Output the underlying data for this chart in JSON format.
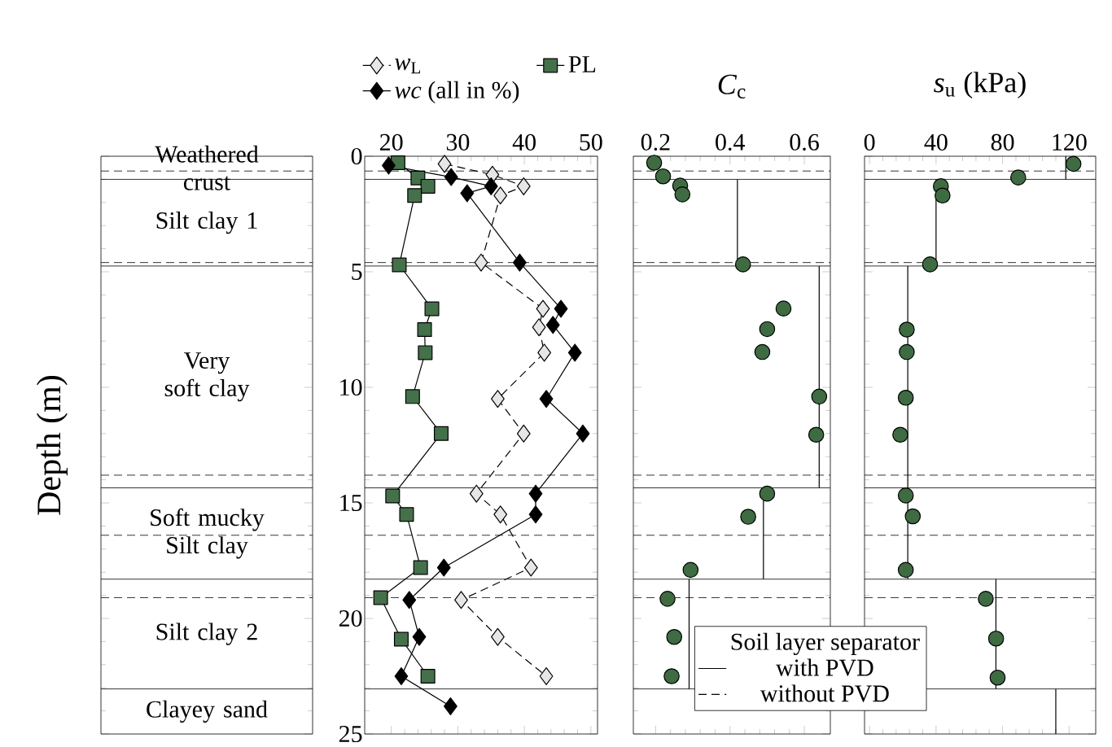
{
  "chart_data": [
    {
      "type": "line",
      "ylabel": "Depth (m)",
      "xlim": [
        16,
        51
      ],
      "xticks": [
        20,
        30,
        40,
        50
      ],
      "ylim": [
        25,
        0
      ],
      "yticks": [
        0,
        5,
        10,
        15,
        20,
        25
      ],
      "legend": "top",
      "annotations": [
        "Weathered crust",
        "Silt clay 1",
        "Very soft clay",
        "Soft mucky Silt clay",
        "Silt clay 2",
        "Clayey sand"
      ],
      "series": [
        {
          "name": "*w*$_{L}$",
          "color": "#e6e6e6",
          "marker": "diamond",
          "line_style": "dashed",
          "x": [
            28,
            35.2,
            39.9,
            36.4,
            33.5,
            42.8,
            42.2,
            43,
            36,
            39.9,
            32.8,
            36.4,
            41,
            30.5,
            36,
            43.3
          ],
          "values": [
            0.33,
            0.8,
            1.3,
            1.7,
            4.6,
            6.6,
            7.4,
            8.5,
            10.5,
            12.0,
            14.6,
            15.5,
            17.8,
            19.2,
            20.8,
            22.5
          ]
        },
        {
          "name": "PL",
          "color": "#44704a",
          "marker": "square",
          "line_style": "solid",
          "x": [
            21,
            24,
            25.5,
            23.5,
            21.2,
            26.1,
            25,
            25.1,
            23.2,
            27.5,
            20.2,
            22.3,
            24.4,
            18.4,
            21.5,
            25.5
          ],
          "values": [
            0.28,
            0.94,
            1.3,
            1.7,
            4.7,
            6.6,
            7.5,
            8.5,
            10.4,
            12.0,
            14.7,
            15.5,
            17.8,
            19.1,
            20.9,
            22.5
          ]
        },
        {
          "name": "*wc* (all in %)",
          "color": "#000000",
          "marker": "diamond",
          "line_style": "solid",
          "x": [
            19.6,
            29,
            35,
            31.4,
            39.3,
            45.5,
            44.3,
            47.6,
            43.3,
            48.8,
            41.7,
            41.7,
            27.9,
            22.7,
            24.2,
            21.5,
            28.9
          ],
          "values": [
            0.4,
            0.9,
            1.3,
            1.6,
            4.6,
            6.6,
            7.3,
            8.5,
            10.5,
            12.0,
            14.6,
            15.5,
            17.8,
            19.2,
            20.8,
            22.5,
            23.8
          ]
        }
      ],
      "ref_lines": [
        {
          "axis": "y",
          "value": 1.0,
          "line_style": "solid"
        },
        {
          "axis": "y",
          "value": 4.75,
          "line_style": "solid"
        },
        {
          "axis": "y",
          "value": 14.35,
          "line_style": "solid"
        },
        {
          "axis": "y",
          "value": 18.3,
          "line_style": "solid"
        },
        {
          "axis": "y",
          "value": 23.05,
          "line_style": "solid"
        },
        {
          "axis": "y",
          "value": 0.64,
          "line_style": "dashed"
        },
        {
          "axis": "y",
          "value": 4.6,
          "line_style": "dashed"
        },
        {
          "axis": "y",
          "value": 13.8,
          "line_style": "dashed"
        },
        {
          "axis": "y",
          "value": 16.4,
          "line_style": "dashed"
        },
        {
          "axis": "y",
          "value": 19.1,
          "line_style": "dashed"
        }
      ]
    },
    {
      "type": "scatter",
      "xlabel": "*C*$_{c}$",
      "xlim": [
        0.14,
        0.67
      ],
      "xticks": [
        0.2,
        0.4,
        0.6
      ],
      "ylim": [
        25,
        0
      ],
      "yticks": [
        0,
        5,
        10,
        15,
        20,
        25
      ],
      "tick_labels": "x",
      "legend": "bottom right",
      "legend_title": "Soil layer separator",
      "series": [
        {
          "color": "#3f6b42",
          "marker": "circle",
          "x": [
            0.196,
            0.22,
            0.266,
            0.272,
            0.435,
            0.544,
            0.5,
            0.487,
            0.64,
            0.632,
            0.5,
            0.449,
            0.294,
            0.232,
            0.25,
            0.243
          ],
          "values": [
            0.28,
            0.87,
            1.27,
            1.65,
            4.68,
            6.59,
            7.48,
            8.47,
            10.4,
            12.05,
            14.6,
            15.6,
            17.9,
            19.15,
            20.8,
            22.5
          ]
        },
        {
          "type": "line",
          "color": "#000000",
          "marker": "none",
          "x": [
            0.42,
            0.42
          ],
          "values": [
            1.0,
            4.7
          ]
        },
        {
          "type": "line",
          "color": "#000000",
          "marker": "none",
          "x": [
            0.64,
            0.64
          ],
          "values": [
            4.75,
            14.35
          ]
        },
        {
          "type": "line",
          "color": "#000000",
          "marker": "none",
          "x": [
            0.49,
            0.49
          ],
          "values": [
            14.35,
            18.3
          ]
        },
        {
          "type": "line",
          "color": "#000000",
          "marker": "none",
          "x": [
            0.29,
            0.29
          ],
          "values": [
            18.3,
            23.05
          ]
        }
      ],
      "ref_lines": [
        {
          "axis": "y",
          "value": 1.0,
          "line_style": "solid",
          "label": "with PVD"
        },
        {
          "axis": "y",
          "value": 4.75,
          "line_style": "solid"
        },
        {
          "axis": "y",
          "value": 14.35,
          "line_style": "solid"
        },
        {
          "axis": "y",
          "value": 18.3,
          "line_style": "solid"
        },
        {
          "axis": "y",
          "value": 23.05,
          "line_style": "solid"
        },
        {
          "axis": "y",
          "value": 0.64,
          "line_style": "dashed",
          "label": "without PVD"
        },
        {
          "axis": "y",
          "value": 4.6,
          "line_style": "dashed"
        },
        {
          "axis": "y",
          "value": 13.8,
          "line_style": "dashed"
        },
        {
          "axis": "y",
          "value": 16.4,
          "line_style": "dashed"
        },
        {
          "axis": "y",
          "value": 19.1,
          "line_style": "dashed"
        }
      ]
    },
    {
      "type": "scatter",
      "xlabel": "*s*$_{u}$ (kPa)",
      "xlim": [
        -3,
        136
      ],
      "xticks": [
        0,
        40,
        80,
        120
      ],
      "ylim": [
        25,
        0
      ],
      "yticks": [
        0,
        5,
        10,
        15,
        20,
        25
      ],
      "tick_labels": "x",
      "series": [
        {
          "color": "#3f6b42",
          "marker": "circle",
          "x": [
            122.6,
            89.4,
            42.9,
            43.9,
            36.4,
            22.4,
            22.4,
            21.8,
            18.5,
            21.8,
            26,
            21.8,
            69.9,
            76.1,
            77
          ],
          "values": [
            0.33,
            0.92,
            1.3,
            1.7,
            4.68,
            7.5,
            8.47,
            10.45,
            12.05,
            14.68,
            15.58,
            17.9,
            19.15,
            20.87,
            22.56
          ]
        },
        {
          "type": "line",
          "color": "#000000",
          "marker": "none",
          "x": [
            118,
            118
          ],
          "values": [
            0,
            1.0
          ]
        },
        {
          "type": "line",
          "color": "#000000",
          "marker": "none",
          "x": [
            40,
            40
          ],
          "values": [
            1.0,
            4.7
          ]
        },
        {
          "type": "line",
          "color": "#000000",
          "marker": "none",
          "x": [
            23,
            23
          ],
          "values": [
            4.75,
            18.3
          ]
        },
        {
          "type": "line",
          "color": "#000000",
          "marker": "none",
          "x": [
            76,
            76
          ],
          "values": [
            18.3,
            23.05
          ]
        },
        {
          "type": "line",
          "color": "#000000",
          "marker": "none",
          "x": [
            112,
            112
          ],
          "values": [
            23.05,
            25
          ]
        }
      ],
      "ref_lines": [
        {
          "axis": "y",
          "value": 1.0,
          "line_style": "solid"
        },
        {
          "axis": "y",
          "value": 4.75,
          "line_style": "solid"
        },
        {
          "axis": "y",
          "value": 14.35,
          "line_style": "solid"
        },
        {
          "axis": "y",
          "value": 18.3,
          "line_style": "solid"
        },
        {
          "axis": "y",
          "value": 23.05,
          "line_style": "solid"
        },
        {
          "axis": "y",
          "value": 0.64,
          "line_style": "dashed"
        },
        {
          "axis": "y",
          "value": 4.6,
          "line_style": "dashed"
        },
        {
          "axis": "y",
          "value": 13.8,
          "line_style": "dashed"
        },
        {
          "axis": "y",
          "value": 16.4,
          "line_style": "dashed"
        },
        {
          "axis": "y",
          "value": 19.1,
          "line_style": "dashed"
        }
      ]
    }
  ]
}
